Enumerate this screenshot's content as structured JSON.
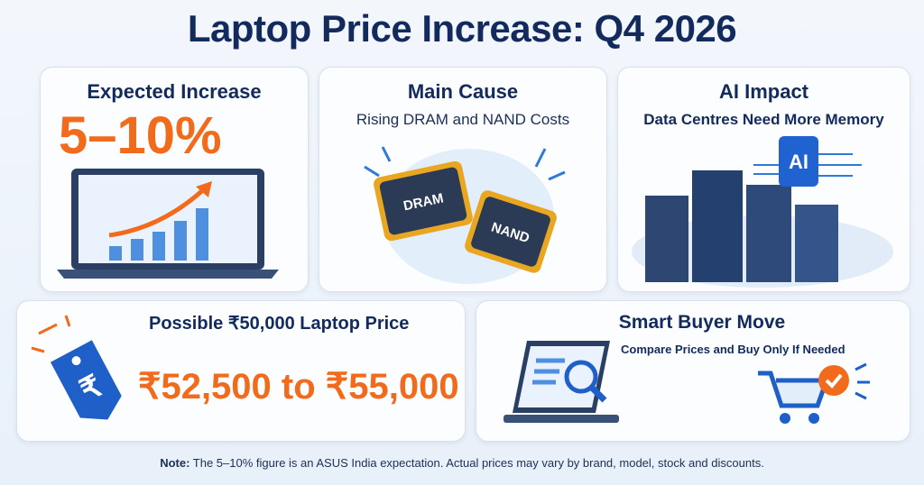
{
  "header": {
    "title": "Laptop Price Increase: Q4 2026"
  },
  "cards": [
    {
      "title": "Expected Increase",
      "highlight": "5–10%"
    },
    {
      "title": "Main Cause",
      "subtitle": "Rising DRAM and NAND Costs",
      "chips": [
        "DRAM",
        "NAND"
      ]
    },
    {
      "title": "AI Impact",
      "subtitle": "Data Centres Need More Memory",
      "chip": "AI"
    },
    {
      "title": "Possible ₹50,000 Laptop Price",
      "highlight": "₹52,500 to ₹55,000",
      "tag": "₹"
    },
    {
      "title": "Smart Buyer Move",
      "subtitle": "Compare Prices and Buy Only If Needed"
    }
  ],
  "footer": {
    "label": "Note:",
    "text": "The 5–10% figure is an ASUS India expectation. Actual prices may vary by brand, model, stock and discounts."
  }
}
